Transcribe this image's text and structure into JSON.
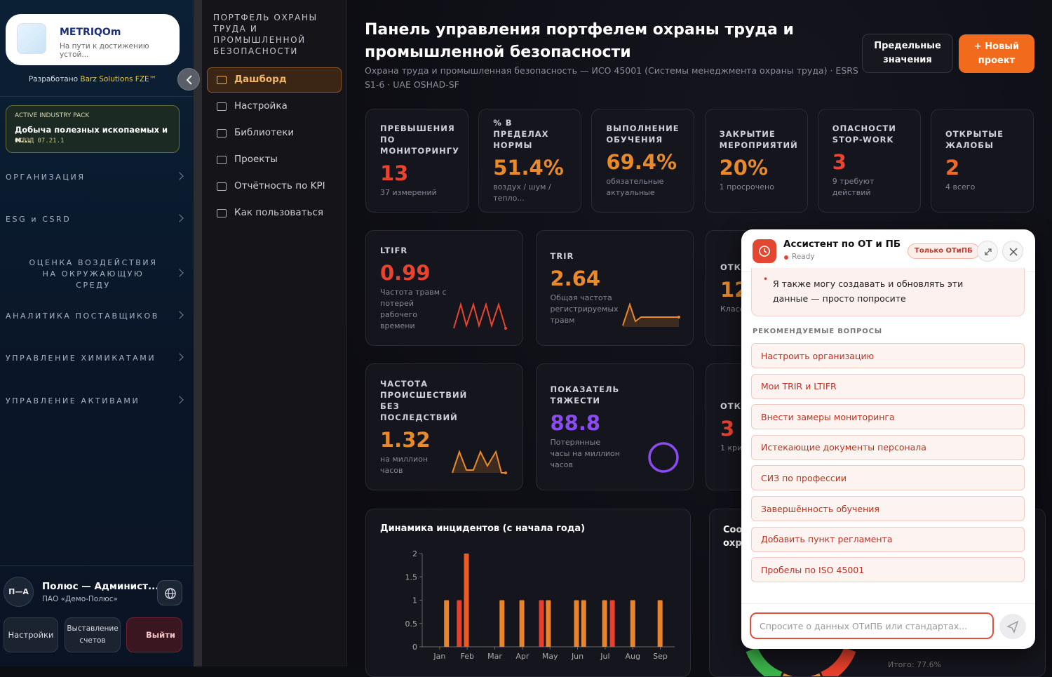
{
  "sidebar": {
    "brand": "METRIQOm",
    "tagline": "На пути к достижению устой...",
    "developed_by": "Разработано",
    "developer": "Barz Solutions FZE™",
    "pack": {
      "badge": "ACTIVE INDUSTRY PACK",
      "name": "Добыча полезных ископаемых и м...",
      "code": "ОКВЭД 07.21.1"
    },
    "sections": [
      "ОРГАНИЗАЦИЯ",
      "ESG и CSRD",
      "ОЦЕНКА ВОЗДЕЙСТВИЯ НА ОКРУЖАЮЩУЮ СРЕДУ",
      "АНАЛИТИКА ПОСТАВЩИКОВ",
      "УПРАВЛЕНИЕ ХИМИКАТАМИ",
      "УПРАВЛЕНИЕ АКТИВАМИ"
    ],
    "user": {
      "initials": "П—А",
      "name": "Полюс — Админист...",
      "org": "ПАО «Демо-Полюс»"
    },
    "buttons": [
      "Настройки",
      "Выставление счетов",
      "Выйти"
    ]
  },
  "portfolio_nav": {
    "heading": "ПОРТФЕЛЬ ОХРАНЫ ТРУДА И ПРОМЫШЛЕННОЙ БЕЗОПАСНОСТИ",
    "items": [
      "Дашборд",
      "Настройка",
      "Библиотеки",
      "Проекты",
      "Отчётность по KPI",
      "Как пользоваться"
    ]
  },
  "header": {
    "title": "Панель управления портфелем охраны труда и промышленной безопасности",
    "subtitle": "Охрана труда и промышленная безопасность — ИСО 45001 (Системы менеджмента охраны труда) · ESRS S1-6 · UAE OSHAD-SF",
    "buttons": [
      "Предельные значения",
      "+ Новый проект"
    ]
  },
  "kpis": [
    {
      "label": "Превышения по мониторингу",
      "value": "13",
      "note": "37 измерений",
      "color": "#ea4430"
    },
    {
      "label": "% в пределах нормы",
      "value": "51.4%",
      "note": "воздух / шум / тепло...",
      "color": "#e8892a"
    },
    {
      "label": "Выполнение обучения",
      "value": "69.4%",
      "note": "обязательные актуальные",
      "color": "#e8892a"
    },
    {
      "label": "Закрытие мероприятий",
      "value": "20%",
      "note": "1 просрочено",
      "color": "#e8892a"
    },
    {
      "label": "Опасности Stop-Work",
      "value": "3",
      "note": "9 требуют действий",
      "color": "#ea4430"
    },
    {
      "label": "Открытые жалобы",
      "value": "2",
      "note": "4 всего",
      "color": "#ee6a2a"
    }
  ],
  "metrics": [
    {
      "label": "LTIFR",
      "value": "0.99",
      "note": "Частота травм с потерей рабочего времени",
      "color": "#ea4430"
    },
    {
      "label": "TRIR",
      "value": "2.64",
      "note": "Общая частота регистрируемых травм",
      "color": "#e8892a"
    },
    {
      "label": "ОТКР ОПА",
      "value": "12",
      "note": "Класс экстр",
      "color": "#e8892a"
    },
    {
      "label": "Частота происшествий без последствий",
      "value": "1.32",
      "note": "на миллион часов",
      "color": "#e8892a"
    },
    {
      "label": "Показатель тяжести",
      "value": "88.8",
      "note": "Потерянные часы на миллион часов",
      "color": "#8a4cf0"
    },
    {
      "label": "ОТКР РЕЗУ АУДИ",
      "value": "3",
      "note": "1 кри",
      "color": "#ea4430"
    }
  ],
  "chart_data": {
    "type": "bar",
    "title": "Динамика инцидентов (с начала года)",
    "x": [
      0.25,
      0.71,
      0.97,
      2.26,
      2.98,
      3.69,
      3.94,
      4.96,
      5.22,
      5.98,
      6.26,
      7.0,
      7.99
    ],
    "values": [
      1,
      1,
      2,
      1,
      1,
      1,
      1,
      1,
      1,
      1,
      1,
      1,
      1
    ],
    "colors": [
      "#e8842a",
      "#e8402c",
      "#ec5a22",
      "#e8842a",
      "#e8842a",
      "#e8402c",
      "#e8842a",
      "#e8842a",
      "#e8842a",
      "#e8842a",
      "#e8402c",
      "#e8842a",
      "#e8842a"
    ],
    "xlim": [
      -0.48,
      8.52
    ],
    "xticks": [
      {
        "value": 0,
        "label": "Jan"
      },
      {
        "value": 1,
        "label": "Feb"
      },
      {
        "value": 2,
        "label": "Mar"
      },
      {
        "value": 3,
        "label": "Apr"
      },
      {
        "value": 4,
        "label": "May"
      },
      {
        "value": 5,
        "label": "Jun"
      },
      {
        "value": 6,
        "label": "Jul"
      },
      {
        "value": 7,
        "label": "Aug"
      },
      {
        "value": 8,
        "label": "Sep"
      }
    ],
    "ylim": [
      0,
      2
    ],
    "yticks": [
      0,
      0.5,
      1,
      1.5,
      2
    ]
  },
  "side_panel": {
    "title": "Соо охра",
    "total": "Итого: 77.6%"
  },
  "assistant": {
    "title": "Ассистент по ОТ и ПБ",
    "status": "Ready",
    "badge": "Только ОТиПБ",
    "message": "Я также могу создавать и обновлять эти данные — просто попросите",
    "suggest_heading": "РЕКОМЕНДУЕМЫЕ ВОПРОСЫ",
    "suggestions": [
      "Настроить организацию",
      "Мои TRIR и LTIFR",
      "Внести замеры мониторинга",
      "Истекающие документы персонала",
      "СИЗ по профессии",
      "Завершённость обучения",
      "Добавить пункт регламента",
      "Пробелы по ISO 45001"
    ],
    "placeholder": "Спросите о данных ОТиПБ или стандартах..."
  }
}
